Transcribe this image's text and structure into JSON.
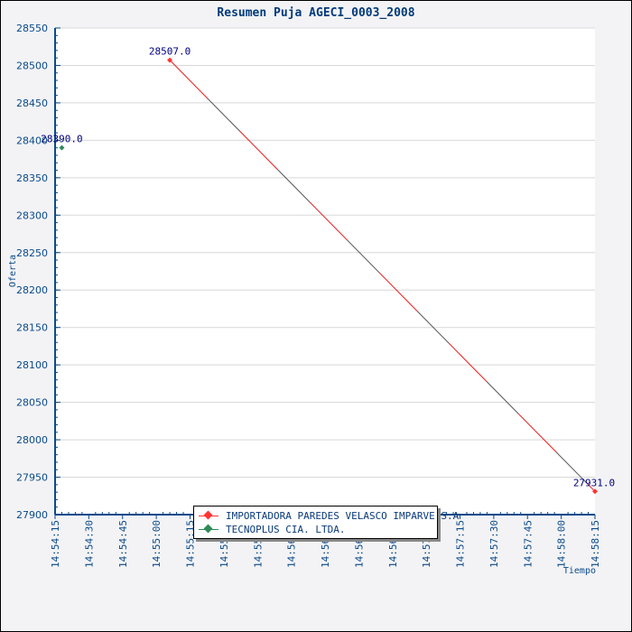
{
  "chart_data": {
    "type": "line",
    "title": "Resumen Puja AGECI_0003_2008",
    "xlabel": "Tiempo",
    "ylabel": "Oferta",
    "ylim": [
      27900,
      28550
    ],
    "yticks": [
      27900,
      27950,
      28000,
      28050,
      28100,
      28150,
      28200,
      28250,
      28300,
      28350,
      28400,
      28450,
      28500,
      28550
    ],
    "xlim_seconds": [
      0,
      240
    ],
    "xticks": [
      "14:54:15",
      "14:54:30",
      "14:54:45",
      "14:55:00",
      "14:55:15",
      "14:55:30",
      "14:55:45",
      "14:56:00",
      "14:56:15",
      "14:56:30",
      "14:56:45",
      "14:57:00",
      "14:57:15",
      "14:57:30",
      "14:57:45",
      "14:58:00",
      "14:58:15"
    ],
    "grid": true,
    "legend_position": "bottom-center",
    "series": [
      {
        "name": "IMPORTADORA PAREDES VELASCO IMPARVE S.A",
        "color": "#ff3333",
        "points": [
          {
            "t": 51,
            "time": "14:55:06",
            "value": 28507.0,
            "label": "28507.0"
          },
          {
            "t": 240,
            "time": "14:58:15",
            "value": 27931.0,
            "label": "27931.0"
          }
        ]
      },
      {
        "name": "TECNOPLUS CIA. LTDA.",
        "color": "#2e8b57",
        "points": [
          {
            "t": 3,
            "time": "14:54:18",
            "value": 28390.0,
            "label": "28390.0"
          }
        ]
      }
    ]
  }
}
